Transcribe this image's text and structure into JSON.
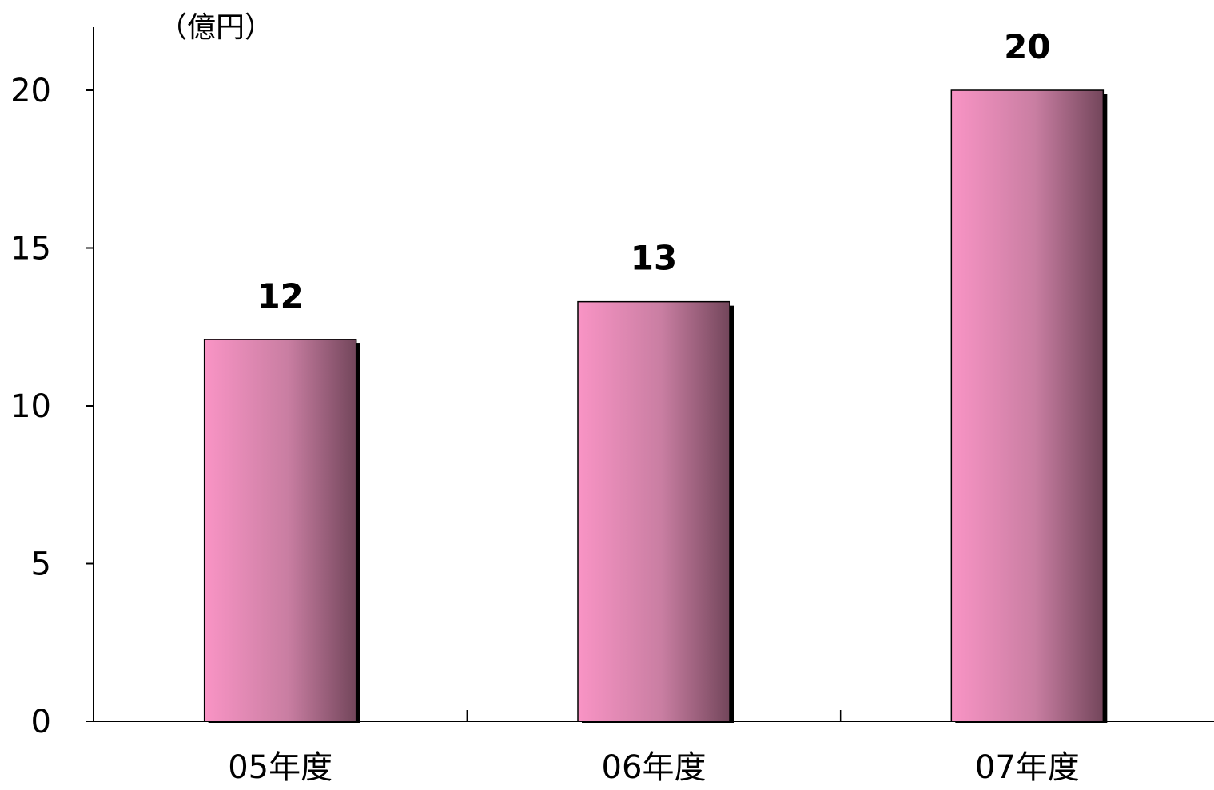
{
  "chart_data": {
    "type": "bar",
    "title": "",
    "ylabel": "（億円）",
    "xlabel": "",
    "categories": [
      "05年度",
      "06年度",
      "07年度"
    ],
    "values": [
      12.1,
      13.3,
      20
    ],
    "value_labels": [
      "12",
      "13",
      "20"
    ],
    "ylim": [
      0,
      20
    ],
    "yticks": [
      0,
      5,
      10,
      15,
      20
    ],
    "ytick_labels": [
      "0",
      "5",
      "10",
      "15",
      "20"
    ],
    "grid": false,
    "legend": "none",
    "colors": {
      "bar_light": "#f994c5",
      "bar_mid": "#c97ea2",
      "bar_dark": "#73465b",
      "bar_shadow": "#000000",
      "axis": "#000000"
    }
  }
}
